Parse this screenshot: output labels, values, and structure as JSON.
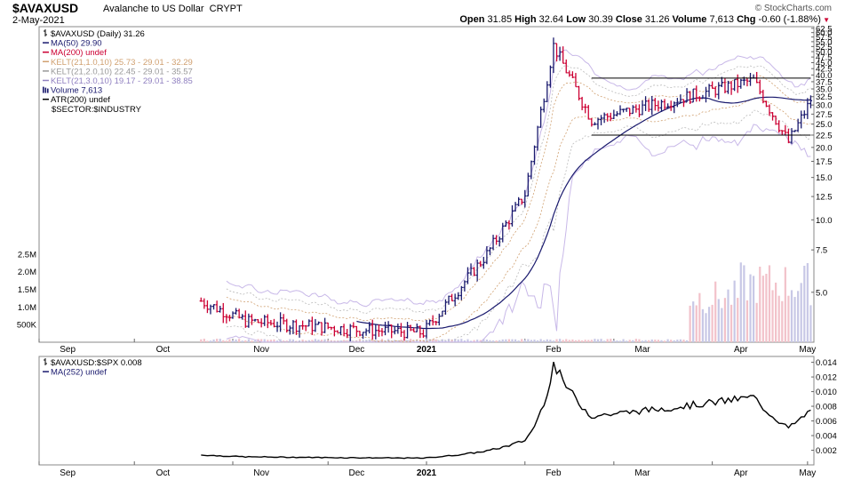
{
  "header": {
    "symbol": "$AVAXUSD",
    "description": "Avalanche to US Dollar",
    "exchange": "CRYPT",
    "date": "2-May-2021",
    "copyright": "© StockCharts.com",
    "ohlc": [
      {
        "label": "Open",
        "value": "31.85"
      },
      {
        "label": "High",
        "value": "32.64"
      },
      {
        "label": "Low",
        "value": "30.39"
      },
      {
        "label": "Close",
        "value": "31.26"
      },
      {
        "label": "Volume",
        "value": "7,613"
      },
      {
        "label": "Chg",
        "value": "-0.60 (-1.88%)"
      }
    ]
  },
  "colors": {
    "up": "#1a1a6e",
    "down": "#cc0033",
    "ma50": "#1a1a6e",
    "kelt1": "#d0a070",
    "kelt2": "#bbbbbb",
    "kelt3": "#c8b8e8",
    "vol_up": "#c8c8e6",
    "vol_down": "#f2c2ca",
    "ratio": "#000000",
    "box": "#000000"
  },
  "chart_data": [
    {
      "type": "candlestick",
      "scale": "log",
      "legend": [
        {
          "text": "$AVAXUSD (Daily) 31.26",
          "color": "#000000",
          "icon": "bar"
        },
        {
          "text": "MA(50) 29.90",
          "color": "#1a1a6e",
          "icon": "line"
        },
        {
          "text": "MA(200) undef",
          "color": "#cc0033",
          "icon": "line"
        },
        {
          "text": "KELT(21,1.0,10) 25.73 - 29.01 - 32.29",
          "color": "#d0a070",
          "icon": "line"
        },
        {
          "text": "KELT(21,2.0,10) 22.45 - 29.01 - 35.57",
          "color": "#999999",
          "icon": "line"
        },
        {
          "text": "KELT(21,3.0,10) 19.17 - 29.01 - 38.85",
          "color": "#9080c0",
          "icon": "line"
        },
        {
          "text": "Volume 7,613",
          "color": "#1a1a6e",
          "icon": "vol"
        },
        {
          "text": "ATR(200) undef",
          "color": "#000000",
          "icon": "line"
        },
        {
          "text": "$SECTOR:$INDUSTRY",
          "color": "#000000",
          "icon": "none"
        }
      ],
      "price_ticks": [
        "62.5",
        "60.0",
        "57.5",
        "55.0",
        "52.5",
        "50.0",
        "47.5",
        "45.0",
        "42.5",
        "40.0",
        "37.5",
        "35.0",
        "32.5",
        "30.0",
        "27.5",
        "25.0",
        "22.5",
        "20.0",
        "17.5",
        "15.0",
        "12.5",
        "10.0",
        "7.5",
        "5.0"
      ],
      "volume_ticks": [
        "2.5M",
        "2.0M",
        "1.5M",
        "1.0M",
        "500K"
      ],
      "months": [
        "Sep",
        "Oct",
        "Nov",
        "Dec",
        "2021",
        "Jan",
        "Feb",
        "Mar",
        "Apr",
        "May"
      ],
      "x_range": [
        "2020-09-01",
        "2021-05-03"
      ],
      "y_range": [
        3.1,
        63.5
      ],
      "box": {
        "start": "2021-02-22",
        "end": "2021-05-02",
        "top": 38.8,
        "bottom": 22.5
      },
      "key_points": [
        {
          "date": "2020-10-22",
          "close": 4.6
        },
        {
          "date": "2020-11-05",
          "close": 3.8
        },
        {
          "date": "2020-12-10",
          "close": 3.5
        },
        {
          "date": "2020-12-31",
          "close": 3.4
        },
        {
          "date": "2021-01-20",
          "close": 7.2
        },
        {
          "date": "2021-02-01",
          "close": 12.8
        },
        {
          "date": "2021-02-10",
          "close": 53.0
        },
        {
          "date": "2021-02-22",
          "close": 26.0
        },
        {
          "date": "2021-04-14",
          "close": 38.0
        },
        {
          "date": "2021-04-25",
          "close": 21.0
        },
        {
          "date": "2021-05-02",
          "close": 31.26
        }
      ]
    },
    {
      "type": "line",
      "legend": [
        {
          "text": "$AVAXUSD:$SPX 0.008",
          "color": "#000000",
          "icon": "bar"
        },
        {
          "text": "MA(252) undef",
          "color": "#1a1a6e",
          "icon": "line"
        }
      ],
      "y_ticks": [
        "0.014",
        "0.012",
        "0.010",
        "0.008",
        "0.006",
        "0.004",
        "0.002"
      ],
      "y_range": [
        0.0,
        0.0148
      ],
      "months": [
        "Sep",
        "Oct",
        "Nov",
        "Dec",
        "2021",
        "Jan",
        "Feb",
        "Mar",
        "Apr",
        "May"
      ]
    }
  ]
}
